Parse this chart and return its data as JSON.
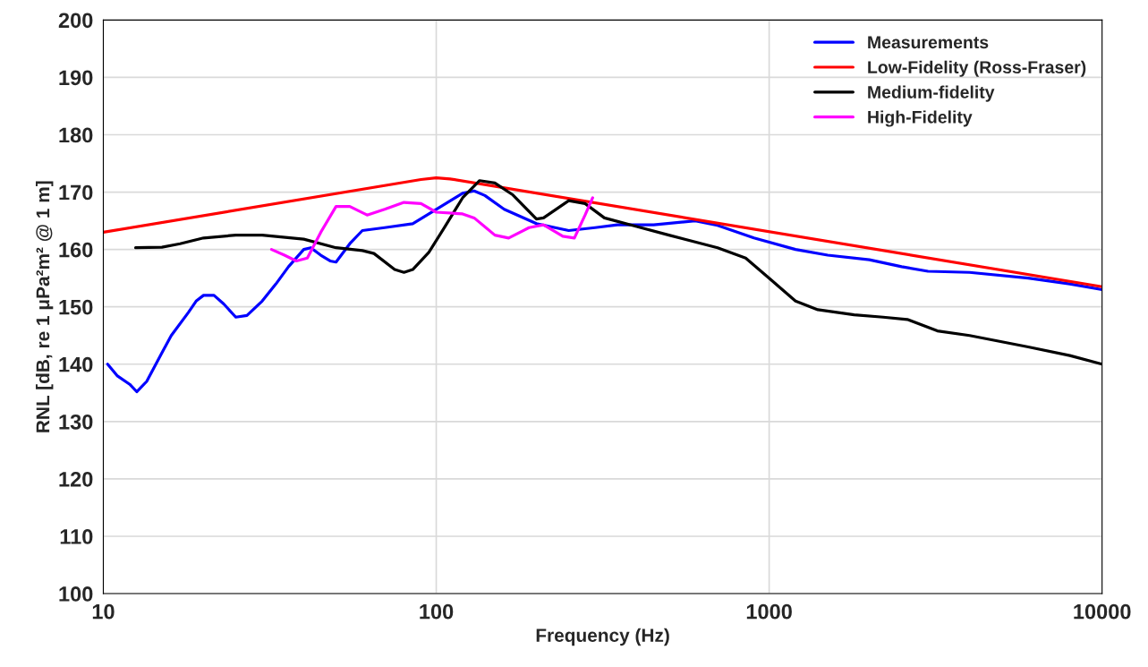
{
  "chart_data": {
    "type": "line",
    "xlabel": "Frequency (Hz)",
    "ylabel": "RNL [dB, re 1 μPa²m² @ 1 m]",
    "log": "x",
    "grid": true,
    "legend": "top right",
    "marker": "none",
    "line_style": "solid",
    "xlim": [
      10,
      10000
    ],
    "xticks": [
      10,
      100,
      1000,
      10000
    ],
    "ylim": [
      100,
      200
    ],
    "yticks": [
      100,
      110,
      120,
      130,
      140,
      150,
      160,
      170,
      180,
      190,
      200
    ],
    "series": [
      {
        "name": "Measurements",
        "color": "#0000ff",
        "x": [
          10.3,
          11,
          12,
          12.6,
          13.5,
          15,
          16,
          18,
          19,
          20,
          21.5,
          23,
          25,
          27,
          30,
          33,
          36,
          40,
          42,
          45,
          48,
          50,
          55,
          60,
          70,
          85,
          100,
          120,
          130,
          140,
          160,
          200,
          250,
          300,
          350,
          450,
          600,
          700,
          900,
          1200,
          1500,
          2000,
          2500,
          3000,
          4000,
          6000,
          8000,
          10000
        ],
        "values": [
          140,
          138,
          136.5,
          135.2,
          137,
          142,
          145,
          149,
          151,
          152,
          152,
          150.5,
          148.2,
          148.5,
          151,
          154,
          157,
          160,
          160.3,
          159,
          158,
          157.8,
          161,
          163.3,
          163.8,
          164.5,
          167,
          169.8,
          170.2,
          169.4,
          167,
          164.5,
          163.3,
          163.8,
          164.3,
          164.3,
          165,
          164.2,
          162,
          160,
          159,
          158.2,
          157,
          156.2,
          156,
          155,
          154,
          153
        ]
      },
      {
        "name": "Low-Fidelity (Ross-Fraser)",
        "color": "#ff0000",
        "x": [
          10,
          90,
          100,
          110,
          10000
        ],
        "values": [
          163,
          172.2,
          172.5,
          172.3,
          153.5
        ]
      },
      {
        "name": "Medium-fidelity",
        "color": "#000000",
        "x": [
          12.5,
          15,
          17,
          20,
          25,
          30,
          40,
          50,
          60,
          65,
          75,
          80,
          85,
          95,
          105,
          120,
          135,
          150,
          170,
          200,
          210,
          250,
          280,
          320,
          400,
          500,
          700,
          850,
          1000,
          1200,
          1400,
          1800,
          2200,
          2600,
          3200,
          4000,
          6000,
          8000,
          10000
        ],
        "values": [
          160.3,
          160.4,
          161,
          162,
          162.5,
          162.5,
          161.8,
          160.3,
          159.8,
          159.3,
          156.5,
          156,
          156.5,
          159.5,
          163.5,
          169,
          172,
          171.6,
          169.5,
          165.3,
          165.5,
          168.5,
          168,
          165.5,
          164,
          162.5,
          160.3,
          158.5,
          155,
          151,
          149.5,
          148.6,
          148.2,
          147.8,
          145.8,
          145,
          143,
          141.5,
          140
        ]
      },
      {
        "name": "High-Fidelity",
        "color": "#ff00ff",
        "x": [
          32,
          35,
          38,
          41,
          45,
          50,
          55,
          62,
          70,
          80,
          90,
          100,
          120,
          130,
          150,
          165,
          190,
          210,
          240,
          260,
          280,
          295
        ],
        "values": [
          160,
          159,
          158,
          158.5,
          163,
          167.5,
          167.5,
          166,
          167,
          168.2,
          168,
          166.5,
          166.2,
          165.5,
          162.5,
          162,
          163.8,
          164.3,
          162.3,
          162,
          166,
          169
        ]
      }
    ]
  }
}
